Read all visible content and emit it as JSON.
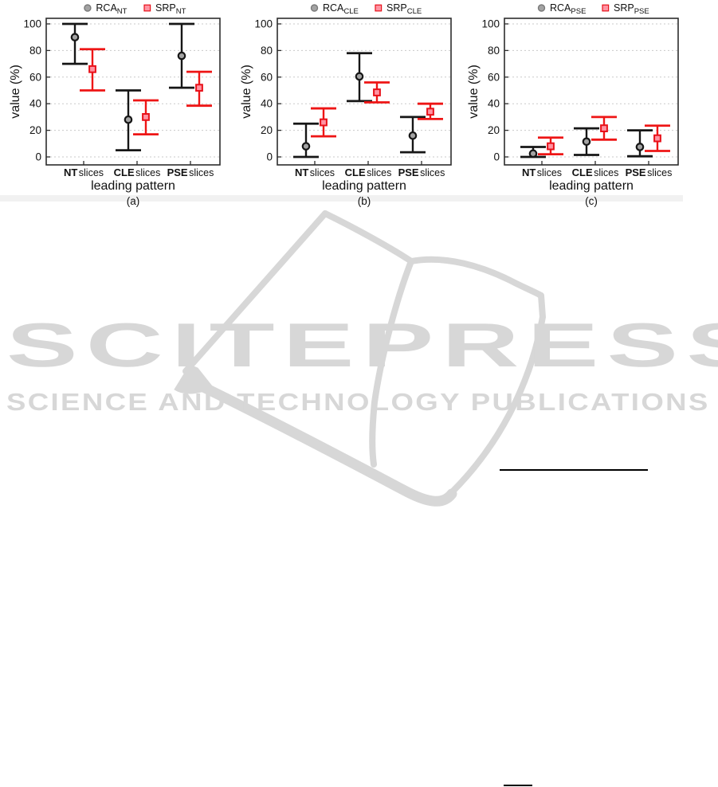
{
  "page": {
    "background": "#ffffff"
  },
  "watermark": {
    "title": "SCITEPRESS",
    "subtitle": "SCIENCE AND TECHNOLOGY PUBLICATIONS",
    "color": "#d7d7d7"
  },
  "chart_data": [
    {
      "type": "errorbar",
      "panel_label": "(a)",
      "xlabel": "leading pattern",
      "ylabel": "value (%)",
      "ylim": [
        0,
        100
      ],
      "yticks": [
        0,
        20,
        40,
        60,
        80,
        100
      ],
      "grid": true,
      "legend_position": "top",
      "categories": [
        {
          "prefix": "NT",
          "label": "slices"
        },
        {
          "prefix": "CLE",
          "label": "slices"
        },
        {
          "prefix": "PSE",
          "label": "slices"
        }
      ],
      "series": [
        {
          "name": "RCA",
          "subscript": "NT",
          "marker": "circle",
          "line_color": "#161616",
          "marker_fill": "#a3a3a3",
          "marker_edge": "#161616",
          "points": [
            {
              "category": "NT slices",
              "value": 90,
              "low": 70,
              "high": 100
            },
            {
              "category": "CLE slices",
              "value": 28,
              "low": 5,
              "high": 50
            },
            {
              "category": "PSE slices",
              "value": 76,
              "low": 52,
              "high": 100
            }
          ]
        },
        {
          "name": "SRP",
          "subscript": "NT",
          "marker": "square",
          "line_color": "#ee1515",
          "marker_fill": "#ff93a2",
          "marker_edge": "#e8111a",
          "points": [
            {
              "category": "NT slices",
              "value": 66,
              "low": 50,
              "high": 81
            },
            {
              "category": "CLE slices",
              "value": 30,
              "low": 17,
              "high": 42.5
            },
            {
              "category": "PSE slices",
              "value": 52,
              "low": 38.5,
              "high": 64
            }
          ]
        }
      ]
    },
    {
      "type": "errorbar",
      "panel_label": "(b)",
      "xlabel": "leading pattern",
      "ylabel": "value (%)",
      "ylim": [
        0,
        100
      ],
      "yticks": [
        0,
        20,
        40,
        60,
        80,
        100
      ],
      "grid": true,
      "legend_position": "top",
      "categories": [
        {
          "prefix": "NT",
          "label": "slices"
        },
        {
          "prefix": "CLE",
          "label": "slices"
        },
        {
          "prefix": "PSE",
          "label": "slices"
        }
      ],
      "series": [
        {
          "name": "RCA",
          "subscript": "CLE",
          "marker": "circle",
          "line_color": "#161616",
          "marker_fill": "#a3a3a3",
          "marker_edge": "#161616",
          "points": [
            {
              "category": "NT slices",
              "value": 8,
              "low": 0,
              "high": 25
            },
            {
              "category": "CLE slices",
              "value": 60.5,
              "low": 42,
              "high": 78
            },
            {
              "category": "PSE slices",
              "value": 16,
              "low": 3.5,
              "high": 30
            }
          ]
        },
        {
          "name": "SRP",
          "subscript": "CLE",
          "marker": "square",
          "line_color": "#ee1515",
          "marker_fill": "#ff93a2",
          "marker_edge": "#e8111a",
          "points": [
            {
              "category": "NT slices",
              "value": 26,
              "low": 15.5,
              "high": 36.5
            },
            {
              "category": "CLE slices",
              "value": 48.5,
              "low": 41,
              "high": 56
            },
            {
              "category": "PSE slices",
              "value": 34,
              "low": 28.5,
              "high": 40
            }
          ]
        }
      ]
    },
    {
      "type": "errorbar",
      "panel_label": "(c)",
      "xlabel": "leading pattern",
      "ylabel": "value (%)",
      "ylim": [
        0,
        100
      ],
      "yticks": [
        0,
        20,
        40,
        60,
        80,
        100
      ],
      "grid": true,
      "legend_position": "top",
      "categories": [
        {
          "prefix": "NT",
          "label": "slices"
        },
        {
          "prefix": "CLE",
          "label": "slices"
        },
        {
          "prefix": "PSE",
          "label": "slices"
        }
      ],
      "series": [
        {
          "name": "RCA",
          "subscript": "PSE",
          "marker": "circle",
          "line_color": "#161616",
          "marker_fill": "#a3a3a3",
          "marker_edge": "#161616",
          "points": [
            {
              "category": "NT slices",
              "value": 2.5,
              "low": 0,
              "high": 7.5
            },
            {
              "category": "CLE slices",
              "value": 11.5,
              "low": 1.5,
              "high": 21.5
            },
            {
              "category": "PSE slices",
              "value": 7.5,
              "low": 0.5,
              "high": 20
            }
          ]
        },
        {
          "name": "SRP",
          "subscript": "PSE",
          "marker": "square",
          "line_color": "#ee1515",
          "marker_fill": "#ff93a2",
          "marker_edge": "#e8111a",
          "points": [
            {
              "category": "NT slices",
              "value": 8,
              "low": 2,
              "high": 14.5
            },
            {
              "category": "CLE slices",
              "value": 21.5,
              "low": 13,
              "high": 30
            },
            {
              "category": "PSE slices",
              "value": 14,
              "low": 4.5,
              "high": 23.5
            }
          ]
        }
      ]
    }
  ]
}
